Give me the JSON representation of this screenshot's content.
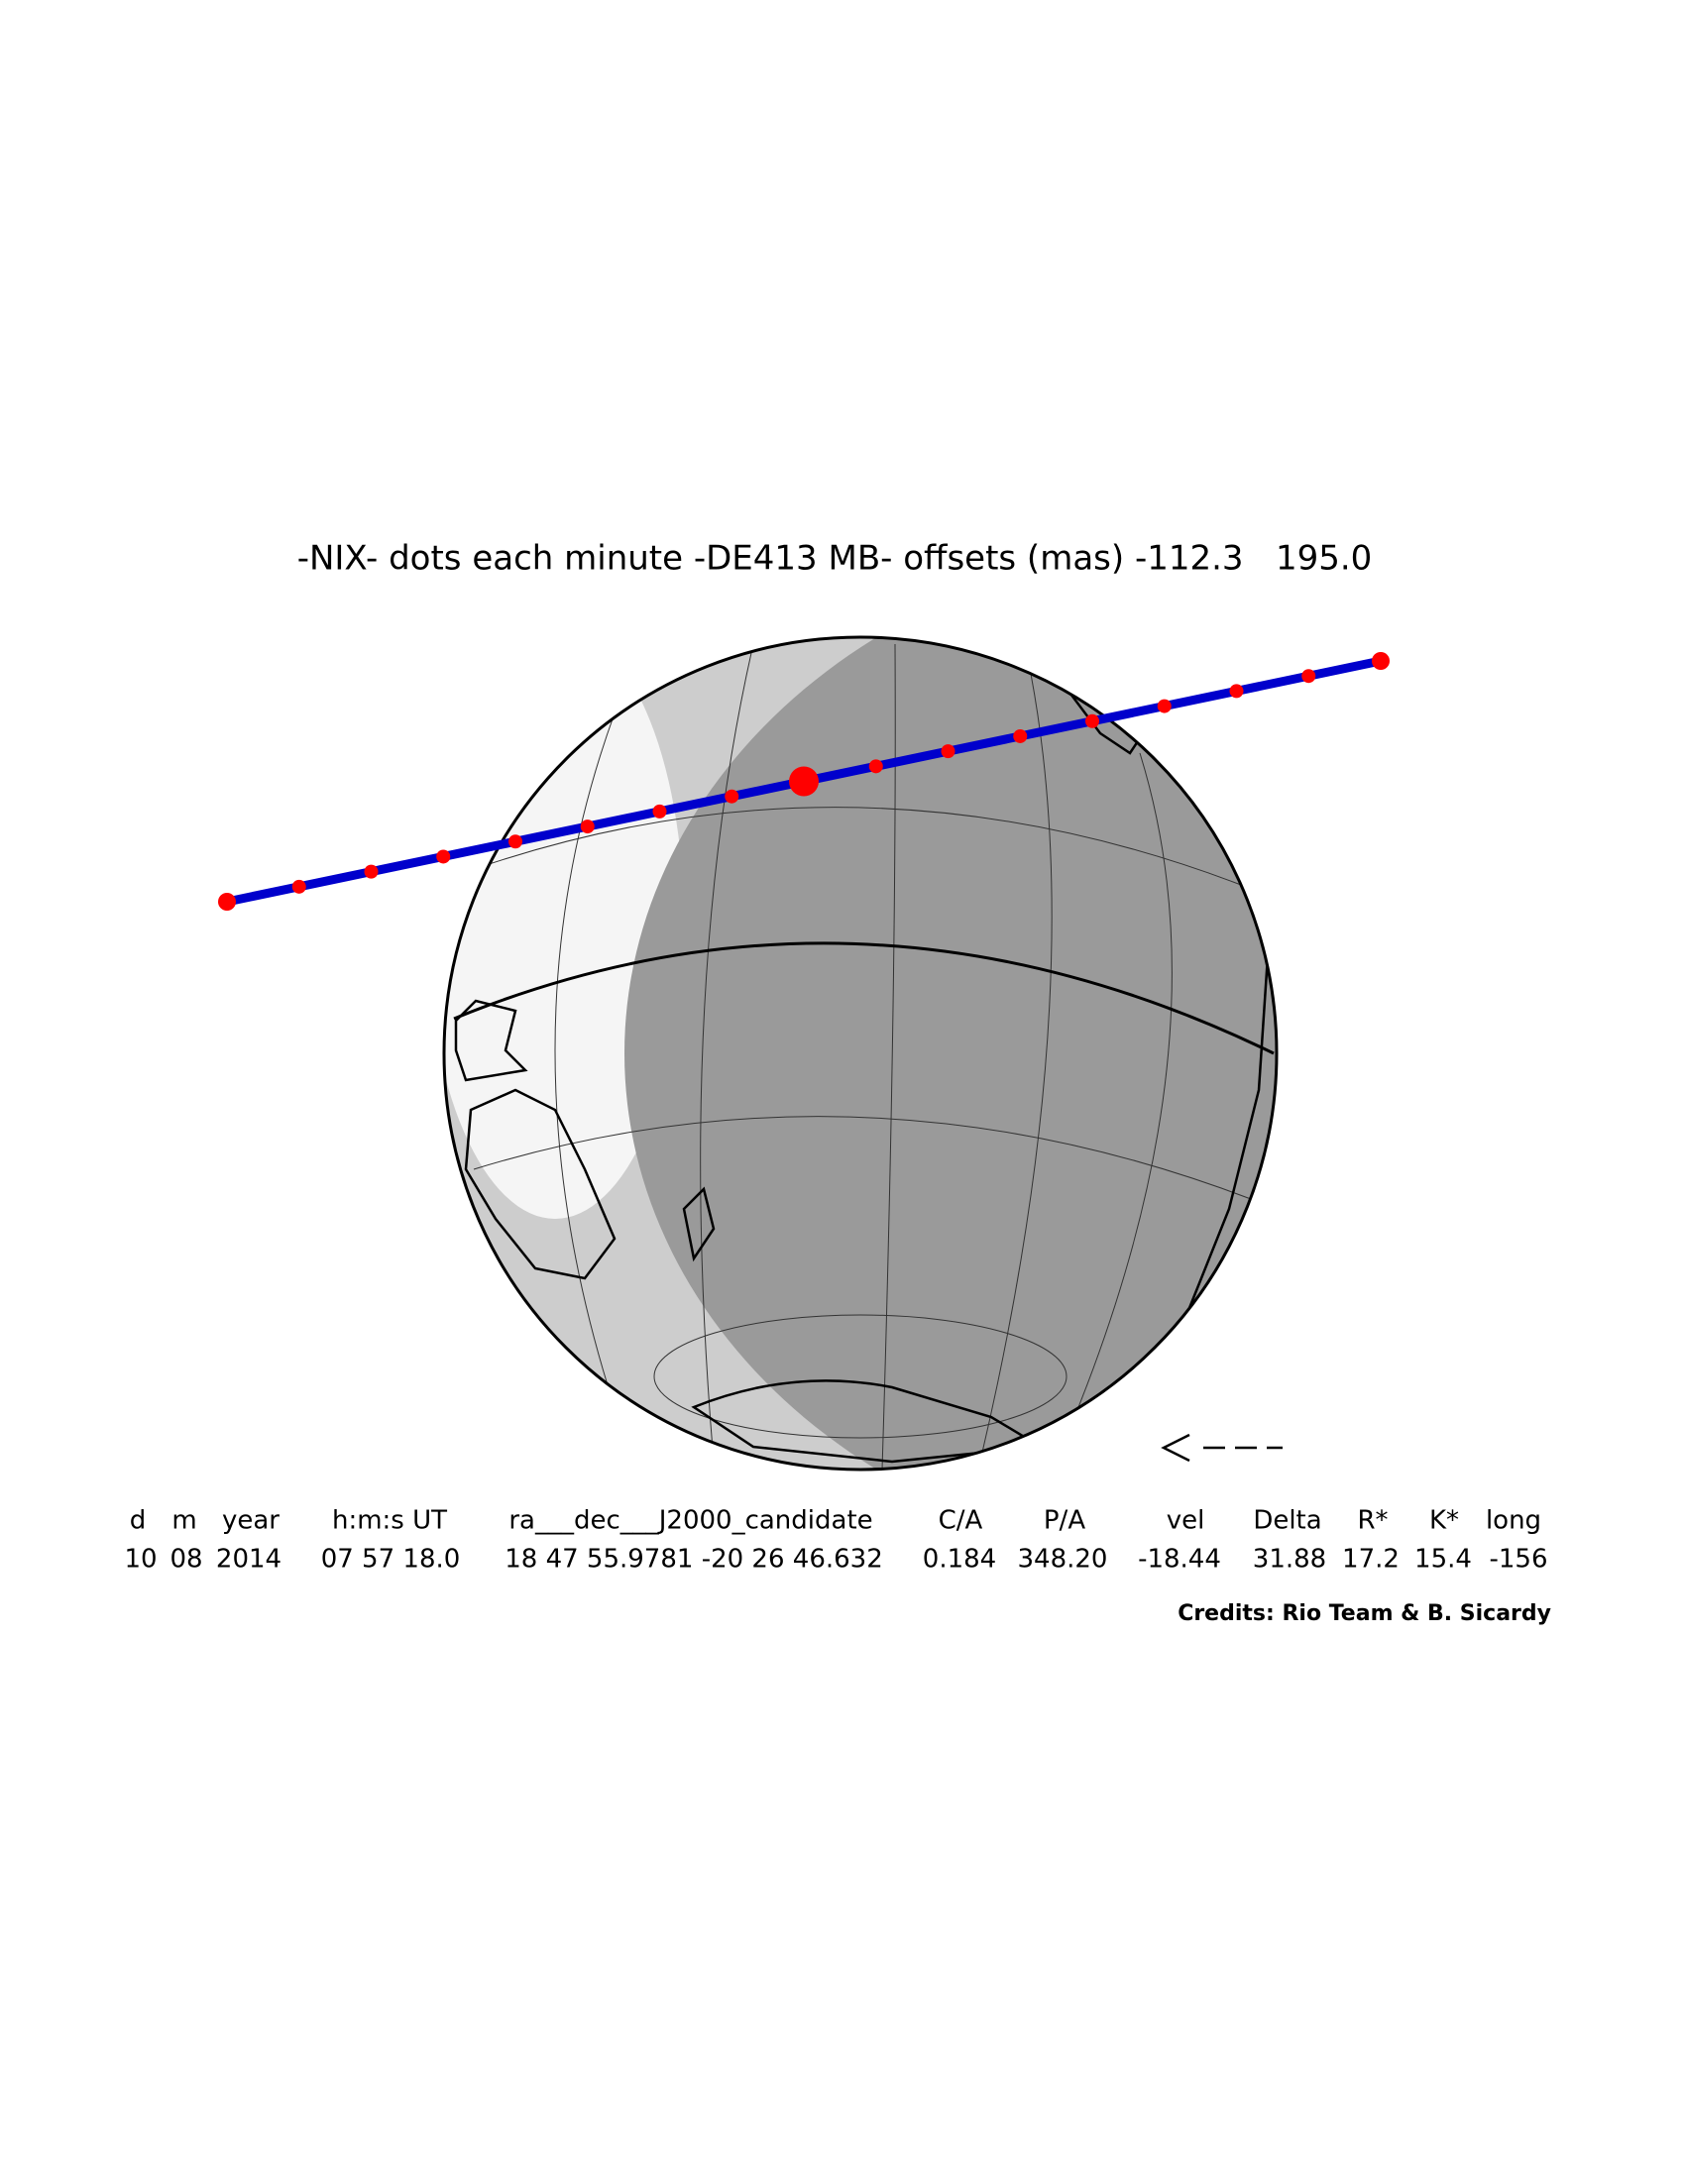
{
  "title": "-NIX- dots each minute -DE413 MB- offsets (mas) -112.3   195.0",
  "table": {
    "header": [
      "d",
      "m",
      "year",
      "h:m:s UT",
      "ra___dec___J2000_candidate",
      "C/A",
      "P/A",
      "vel",
      "Delta",
      "R*",
      "K*",
      "long"
    ],
    "rows": [
      [
        "10",
        "08",
        "2014",
        "07 57 18.0",
        "18 47 55.9781 -20 26 46.632",
        "0.184",
        "348.20",
        "-18.44",
        "31.88",
        "17.2",
        "15.4",
        "-156"
      ]
    ]
  },
  "credits": "Credits: Rio Team & B. Sicardy"
}
